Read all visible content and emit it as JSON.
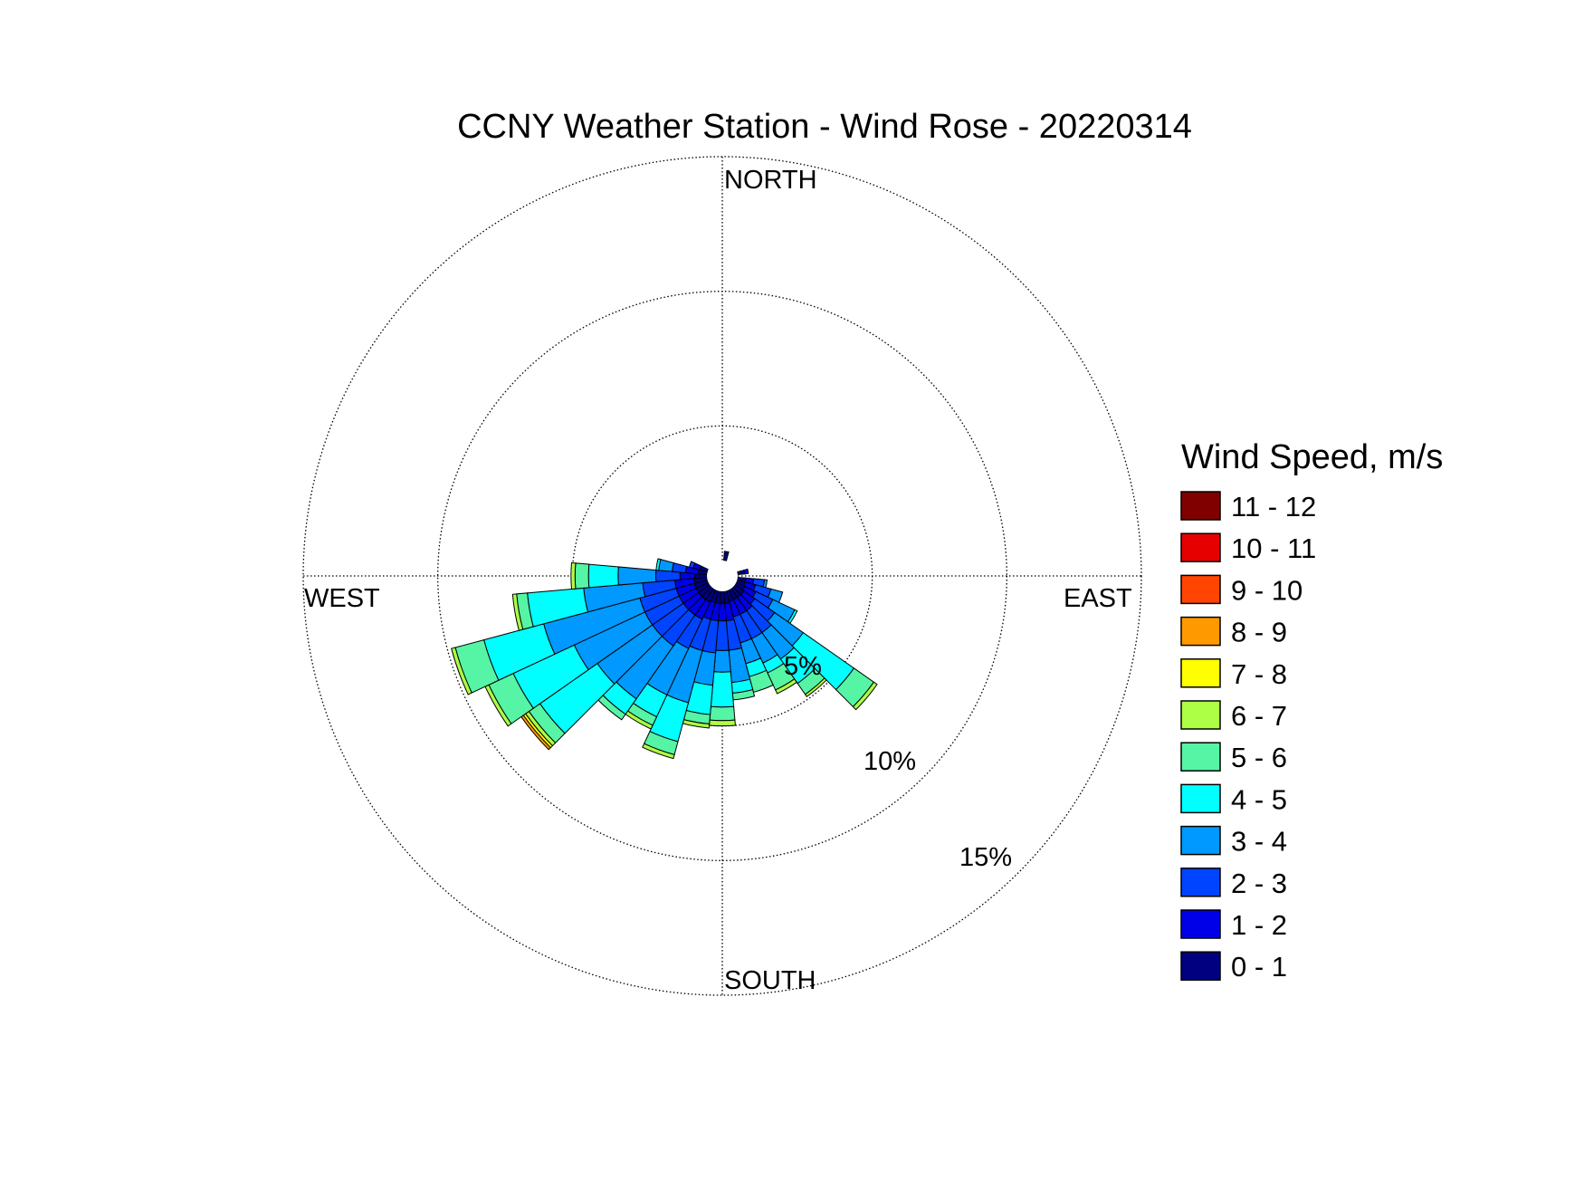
{
  "chart_data": {
    "type": "windrose",
    "title": "CCNY Weather Station - Wind Rose - 20220314",
    "direction_labels": {
      "north": "NORTH",
      "east": "EAST",
      "south": "SOUTH",
      "west": "WEST"
    },
    "ring_labels": [
      "5%",
      "10%",
      "15%"
    ],
    "ring_values": [
      5,
      10,
      15
    ],
    "rmax": 15,
    "legend": {
      "title": "Wind Speed, m/s",
      "placement": "right",
      "bins": [
        "11 - 12",
        "10 - 11",
        "9 - 10",
        "8 - 9",
        "7 - 8",
        "6 - 7",
        "5 - 6",
        "4 - 5",
        "3 - 4",
        "2 - 3",
        "1 - 2",
        "0 - 1"
      ],
      "colors": [
        "#800000",
        "#e60000",
        "#ff4500",
        "#ff9900",
        "#ffff00",
        "#adff45",
        "#55f5a5",
        "#00ffff",
        "#0099ff",
        "#0044ff",
        "#0000e8",
        "#000080"
      ]
    },
    "bin_colors_low_to_high": [
      "#000080",
      "#0000e8",
      "#0044ff",
      "#0099ff",
      "#00ffff",
      "#55f5a5",
      "#adff45",
      "#ffff00",
      "#ff9900",
      "#ff4500",
      "#e60000",
      "#800000"
    ],
    "sector_width_deg": 10,
    "sectors": [
      {
        "direction": 10,
        "cumulative": [
          0.35
        ]
      },
      {
        "direction": 80,
        "cumulative": [
          0.25,
          0.4
        ]
      },
      {
        "direction": 100,
        "cumulative": [
          0.3,
          0.6,
          1.0,
          1.1
        ]
      },
      {
        "direction": 110,
        "cumulative": [
          0.3,
          0.7,
          1.3,
          1.75
        ]
      },
      {
        "direction": 120,
        "cumulative": [
          0.35,
          0.8,
          1.5,
          2.4,
          2.5
        ]
      },
      {
        "direction": 130,
        "cumulative": [
          0.4,
          0.9,
          1.8,
          3.1,
          5.4,
          6.3,
          6.45
        ]
      },
      {
        "direction": 140,
        "cumulative": [
          0.4,
          1.0,
          2.0,
          3.2,
          4.3,
          4.8,
          4.9
        ]
      },
      {
        "direction": 150,
        "cumulative": [
          0.4,
          1.0,
          2.0,
          3.0,
          3.4,
          4.1,
          4.25
        ]
      },
      {
        "direction": 160,
        "cumulative": [
          0.4,
          1.0,
          2.0,
          2.8,
          3.3,
          3.9
        ]
      },
      {
        "direction": 170,
        "cumulative": [
          0.45,
          1.1,
          2.2,
          3.4,
          3.8,
          4.05
        ]
      },
      {
        "direction": 180,
        "cumulative": [
          0.45,
          1.1,
          2.2,
          3.0,
          4.3,
          4.8,
          5.0
        ]
      },
      {
        "direction": 190,
        "cumulative": [
          0.45,
          1.1,
          2.3,
          3.5,
          4.6,
          4.95,
          5.1
        ]
      },
      {
        "direction": 200,
        "cumulative": [
          0.45,
          1.1,
          2.3,
          4.3,
          5.8,
          6.3,
          6.45
        ]
      },
      {
        "direction": 210,
        "cumulative": [
          0.5,
          1.2,
          2.4,
          4.3,
          5.2,
          5.55,
          5.7
        ]
      },
      {
        "direction": 220,
        "cumulative": [
          0.5,
          1.2,
          2.6,
          5.0,
          5.7,
          5.95
        ]
      },
      {
        "direction": 230,
        "cumulative": [
          0.5,
          1.2,
          2.6,
          5.1,
          7.7,
          8.2,
          8.35,
          8.45,
          8.55
        ]
      },
      {
        "direction": 240,
        "cumulative": [
          0.5,
          1.2,
          2.6,
          5.5,
          8.0,
          9.0,
          9.15
        ]
      },
      {
        "direction": 250,
        "cumulative": [
          0.5,
          1.2,
          2.6,
          6.3,
          8.6,
          9.7,
          9.85
        ]
      },
      {
        "direction": 260,
        "cumulative": [
          0.5,
          1.2,
          2.4,
          4.6,
          6.7,
          7.1,
          7.25
        ]
      },
      {
        "direction": 270,
        "cumulative": [
          0.45,
          1.0,
          1.9,
          3.3,
          4.4,
          4.9,
          5.05
        ]
      },
      {
        "direction": 280,
        "cumulative": [
          0.35,
          0.8,
          1.3,
          1.8,
          1.9
        ]
      },
      {
        "direction": 290,
        "cumulative": [
          0.3,
          0.55,
          0.7
        ]
      }
    ]
  }
}
